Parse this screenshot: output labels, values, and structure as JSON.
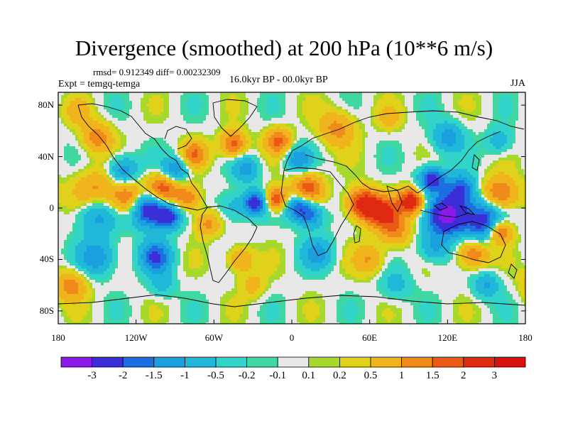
{
  "title": "Divergence (smoothed) at 200 hPa (10**6 m/s)",
  "stats": "rmsd= 0.912349 diff= 0.00232309",
  "experiment": "Expt = temgq-temga",
  "period": "16.0kyr BP - 00.0kyr BP",
  "season": "JJA",
  "lat_ticks": [
    "80N",
    "40N",
    "0",
    "40S",
    "80S"
  ],
  "lon_ticks": [
    "180",
    "120W",
    "60W",
    "0",
    "60E",
    "120E",
    "180"
  ],
  "colorbar": {
    "labels": [
      "-3",
      "-2",
      "-1.5",
      "-1",
      "-0.5",
      "-0.2",
      "-0.1",
      "0.1",
      "0.2",
      "0.5",
      "1",
      "1.5",
      "2",
      "3"
    ],
    "colors": [
      "#8b1ae8",
      "#3a2fd6",
      "#1d6ee0",
      "#1aa0de",
      "#20b7d8",
      "#32d3c8",
      "#40d8a0",
      "#e8e8e8",
      "#a6d92c",
      "#e0d21a",
      "#f0b41c",
      "#f08a1a",
      "#ea5a14",
      "#de2a10",
      "#d81010"
    ]
  },
  "field_blobs": [
    {
      "lon": -150,
      "lat": 10,
      "r": 18,
      "v": 1.6
    },
    {
      "lon": -125,
      "lat": 8,
      "r": 14,
      "v": 1.8
    },
    {
      "lon": -100,
      "lat": 14,
      "r": 12,
      "v": 2.2
    },
    {
      "lon": -80,
      "lat": 8,
      "r": 10,
      "v": 1.4
    },
    {
      "lon": -150,
      "lat": -3,
      "r": 16,
      "v": -1.8
    },
    {
      "lon": -110,
      "lat": 0,
      "r": 14,
      "v": -3.2
    },
    {
      "lon": -95,
      "lat": -7,
      "r": 9,
      "v": -2.2
    },
    {
      "lon": -65,
      "lat": -12,
      "r": 10,
      "v": 1.2
    },
    {
      "lon": -45,
      "lat": 1,
      "r": 12,
      "v": -0.8
    },
    {
      "lon": -28,
      "lat": 4,
      "r": 9,
      "v": -2.4
    },
    {
      "lon": -12,
      "lat": 7,
      "r": 9,
      "v": 2.2
    },
    {
      "lon": 5,
      "lat": 1,
      "r": 10,
      "v": -2.0
    },
    {
      "lon": 15,
      "lat": -6,
      "r": 10,
      "v": -1.5
    },
    {
      "lon": 12,
      "lat": 15,
      "r": 12,
      "v": 1.8
    },
    {
      "lon": 55,
      "lat": 3,
      "r": 12,
      "v": 2.6
    },
    {
      "lon": 70,
      "lat": -4,
      "r": 12,
      "v": 2.0
    },
    {
      "lon": 92,
      "lat": 5,
      "r": 10,
      "v": 2.6
    },
    {
      "lon": 108,
      "lat": 22,
      "r": 10,
      "v": -2.4
    },
    {
      "lon": 130,
      "lat": 14,
      "r": 12,
      "v": -2.0
    },
    {
      "lon": 160,
      "lat": 10,
      "r": 14,
      "v": 1.8
    },
    {
      "lon": 120,
      "lat": -6,
      "r": 14,
      "v": -3.4
    },
    {
      "lon": 148,
      "lat": -10,
      "r": 16,
      "v": -2.6
    },
    {
      "lon": 160,
      "lat": -18,
      "r": 10,
      "v": 2.2
    },
    {
      "lon": 80,
      "lat": -18,
      "r": 12,
      "v": 1.2
    },
    {
      "lon": -130,
      "lat": 28,
      "r": 12,
      "v": -1.6
    },
    {
      "lon": -90,
      "lat": 30,
      "r": 10,
      "v": -1.5
    },
    {
      "lon": -35,
      "lat": 30,
      "r": 10,
      "v": -1.2
    },
    {
      "lon": 5,
      "lat": 38,
      "r": 10,
      "v": -1.4
    },
    {
      "lon": -10,
      "lat": 52,
      "r": 10,
      "v": 1.6
    },
    {
      "lon": -45,
      "lat": 50,
      "r": 10,
      "v": 1.8
    },
    {
      "lon": -75,
      "lat": 42,
      "r": 10,
      "v": 1.4
    },
    {
      "lon": 35,
      "lat": 62,
      "r": 14,
      "v": 1.2
    },
    {
      "lon": 75,
      "lat": 70,
      "r": 10,
      "v": 0.6
    },
    {
      "lon": 120,
      "lat": 55,
      "r": 12,
      "v": -1.3
    },
    {
      "lon": 160,
      "lat": 52,
      "r": 10,
      "v": -0.9
    },
    {
      "lon": -150,
      "lat": 55,
      "r": 12,
      "v": 1.3
    },
    {
      "lon": -165,
      "lat": 75,
      "r": 10,
      "v": 0.7
    },
    {
      "lon": -150,
      "lat": -38,
      "r": 14,
      "v": -1.4
    },
    {
      "lon": -105,
      "lat": -38,
      "r": 12,
      "v": -2.0
    },
    {
      "lon": -40,
      "lat": -40,
      "r": 10,
      "v": 1.2
    },
    {
      "lon": 20,
      "lat": -35,
      "r": 12,
      "v": -1.2
    },
    {
      "lon": 60,
      "lat": -40,
      "r": 12,
      "v": 1.0
    },
    {
      "lon": 110,
      "lat": -30,
      "r": 12,
      "v": -1.2
    },
    {
      "lon": 140,
      "lat": -35,
      "r": 12,
      "v": 1.6
    },
    {
      "lon": -170,
      "lat": -60,
      "r": 12,
      "v": 1.3
    },
    {
      "lon": -100,
      "lat": -60,
      "r": 10,
      "v": -0.7
    },
    {
      "lon": -30,
      "lat": -60,
      "r": 10,
      "v": 0.7
    },
    {
      "lon": 80,
      "lat": -60,
      "r": 12,
      "v": -0.7
    },
    {
      "lon": 150,
      "lat": -60,
      "r": 10,
      "v": -1.1
    }
  ]
}
